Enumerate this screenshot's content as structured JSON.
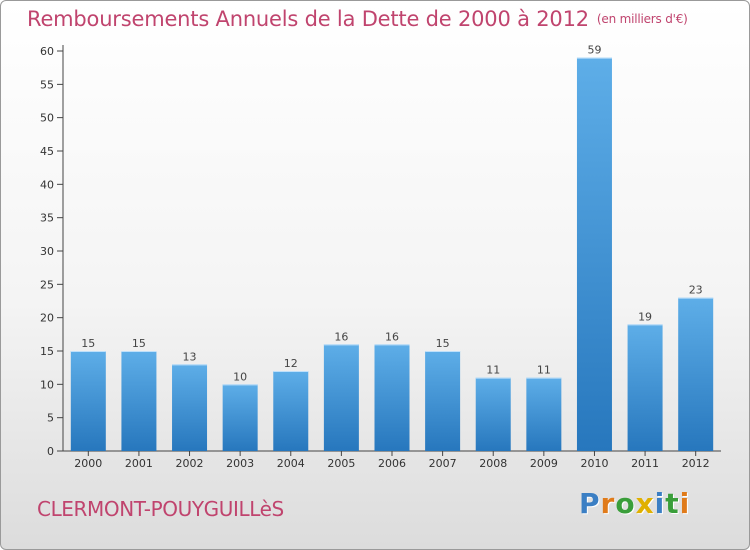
{
  "title": "Remboursements Annuels de la Dette de 2000 à 2012",
  "unit_label": "(en milliers d'€)",
  "commune": "CLERMONT-POUYGUILLèS",
  "logo": {
    "text": "Proxiti",
    "letter_colors": [
      "#3b7fc4",
      "#e07b1a",
      "#3a9e3a",
      "#e0b000",
      "#3b7fc4",
      "#3a9e3a",
      "#e07b1a"
    ]
  },
  "colors": {
    "title": "#c0446e",
    "bar_light": "#5eaee8",
    "bar_dark": "#2777bd"
  },
  "chart_data": {
    "type": "bar",
    "title": "Remboursements Annuels de la Dette de 2000 à 2012",
    "xlabel": "",
    "ylabel": "",
    "categories": [
      "2000",
      "2001",
      "2002",
      "2003",
      "2004",
      "2005",
      "2006",
      "2007",
      "2008",
      "2009",
      "2010",
      "2011",
      "2012"
    ],
    "values": [
      15,
      15,
      13,
      10,
      12,
      16,
      16,
      15,
      11,
      11,
      59,
      19,
      23
    ],
    "ylim": [
      0,
      60
    ],
    "yticks": [
      0,
      5,
      10,
      15,
      20,
      25,
      30,
      35,
      40,
      45,
      50,
      55,
      60
    ],
    "grid": false,
    "legend": "none"
  }
}
